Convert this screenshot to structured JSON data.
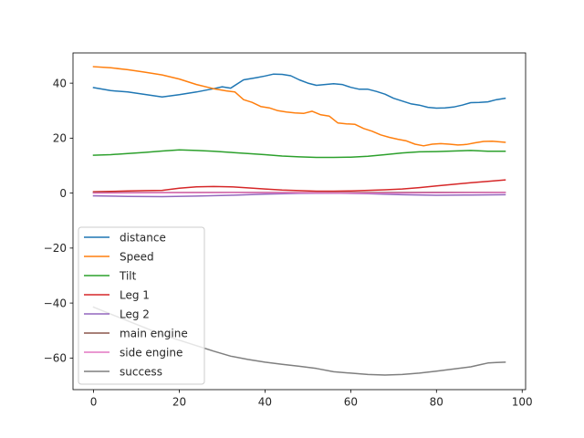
{
  "chart_data": {
    "type": "line",
    "xlim": [
      -4.8,
      100.8
    ],
    "ylim": [
      -71.5,
      51.0
    ],
    "xticks": [
      0,
      20,
      40,
      60,
      80,
      100
    ],
    "yticks": [
      -60,
      -40,
      -20,
      0,
      20,
      40
    ],
    "xtick_labels": [
      "0",
      "20",
      "40",
      "60",
      "80",
      "100"
    ],
    "ytick_labels": [
      "−60",
      "−40",
      "−20",
      "0",
      "20",
      "40"
    ],
    "grid": false,
    "legend_position": "lower-left",
    "series": [
      {
        "name": "distance",
        "color": "#1f77b4",
        "points": [
          [
            0,
            38.4
          ],
          [
            4,
            37.3
          ],
          [
            8,
            36.8
          ],
          [
            12,
            35.9
          ],
          [
            16,
            35.0
          ],
          [
            20,
            35.8
          ],
          [
            24,
            36.8
          ],
          [
            28,
            38.0
          ],
          [
            30,
            38.7
          ],
          [
            32,
            38.2
          ],
          [
            35,
            41.2
          ],
          [
            38,
            42.0
          ],
          [
            40,
            42.6
          ],
          [
            42,
            43.3
          ],
          [
            44,
            43.2
          ],
          [
            46,
            42.7
          ],
          [
            48,
            41.2
          ],
          [
            50,
            40.0
          ],
          [
            52,
            39.2
          ],
          [
            54,
            39.5
          ],
          [
            56,
            39.8
          ],
          [
            58,
            39.5
          ],
          [
            60,
            38.5
          ],
          [
            62,
            37.8
          ],
          [
            64,
            37.8
          ],
          [
            66,
            37.0
          ],
          [
            68,
            36.0
          ],
          [
            70,
            34.5
          ],
          [
            72,
            33.5
          ],
          [
            74,
            32.5
          ],
          [
            76,
            32.0
          ],
          [
            78,
            31.2
          ],
          [
            80,
            30.9
          ],
          [
            82,
            31.0
          ],
          [
            84,
            31.3
          ],
          [
            86,
            32.0
          ],
          [
            88,
            32.9
          ],
          [
            90,
            33.0
          ],
          [
            92,
            33.2
          ],
          [
            94,
            34.0
          ],
          [
            96,
            34.5
          ]
        ]
      },
      {
        "name": "Speed",
        "color": "#ff7f0e",
        "points": [
          [
            0,
            46.0
          ],
          [
            4,
            45.6
          ],
          [
            8,
            44.9
          ],
          [
            12,
            44.0
          ],
          [
            16,
            43.0
          ],
          [
            20,
            41.5
          ],
          [
            24,
            39.5
          ],
          [
            28,
            38.0
          ],
          [
            31,
            37.2
          ],
          [
            33,
            36.8
          ],
          [
            35,
            34.0
          ],
          [
            37,
            33.0
          ],
          [
            39,
            31.5
          ],
          [
            41,
            31.0
          ],
          [
            43,
            30.0
          ],
          [
            45,
            29.5
          ],
          [
            47,
            29.2
          ],
          [
            49,
            29.0
          ],
          [
            51,
            29.8
          ],
          [
            53,
            28.5
          ],
          [
            55,
            28.0
          ],
          [
            57,
            25.5
          ],
          [
            59,
            25.2
          ],
          [
            61,
            25.0
          ],
          [
            63,
            23.5
          ],
          [
            65,
            22.5
          ],
          [
            67,
            21.2
          ],
          [
            69,
            20.3
          ],
          [
            71,
            19.6
          ],
          [
            73,
            19.0
          ],
          [
            75,
            17.8
          ],
          [
            77,
            17.2
          ],
          [
            79,
            17.8
          ],
          [
            81,
            18.0
          ],
          [
            83,
            17.8
          ],
          [
            85,
            17.5
          ],
          [
            87,
            17.7
          ],
          [
            89,
            18.3
          ],
          [
            91,
            18.8
          ],
          [
            93,
            18.9
          ],
          [
            96,
            18.5
          ]
        ]
      },
      {
        "name": "Tilt",
        "color": "#2ca02c",
        "points": [
          [
            0,
            13.8
          ],
          [
            4,
            14.0
          ],
          [
            8,
            14.4
          ],
          [
            12,
            14.8
          ],
          [
            16,
            15.3
          ],
          [
            20,
            15.7
          ],
          [
            24,
            15.5
          ],
          [
            28,
            15.2
          ],
          [
            32,
            14.8
          ],
          [
            36,
            14.4
          ],
          [
            40,
            14.0
          ],
          [
            44,
            13.5
          ],
          [
            48,
            13.2
          ],
          [
            52,
            13.0
          ],
          [
            56,
            13.0
          ],
          [
            60,
            13.1
          ],
          [
            64,
            13.4
          ],
          [
            68,
            14.0
          ],
          [
            72,
            14.6
          ],
          [
            76,
            15.0
          ],
          [
            80,
            15.1
          ],
          [
            84,
            15.3
          ],
          [
            88,
            15.5
          ],
          [
            92,
            15.2
          ],
          [
            96,
            15.2
          ]
        ]
      },
      {
        "name": "Leg 1",
        "color": "#d62728",
        "points": [
          [
            0,
            0.5
          ],
          [
            4,
            0.6
          ],
          [
            8,
            0.8
          ],
          [
            12,
            0.9
          ],
          [
            16,
            1.0
          ],
          [
            20,
            1.8
          ],
          [
            24,
            2.3
          ],
          [
            28,
            2.4
          ],
          [
            32,
            2.3
          ],
          [
            36,
            1.9
          ],
          [
            40,
            1.5
          ],
          [
            44,
            1.1
          ],
          [
            48,
            0.9
          ],
          [
            52,
            0.7
          ],
          [
            56,
            0.7
          ],
          [
            60,
            0.8
          ],
          [
            64,
            1.0
          ],
          [
            68,
            1.2
          ],
          [
            72,
            1.5
          ],
          [
            76,
            2.0
          ],
          [
            80,
            2.6
          ],
          [
            84,
            3.2
          ],
          [
            88,
            3.8
          ],
          [
            92,
            4.3
          ],
          [
            96,
            4.8
          ]
        ]
      },
      {
        "name": "Leg 2",
        "color": "#9467bd",
        "points": [
          [
            0,
            -1.0
          ],
          [
            8,
            -1.2
          ],
          [
            16,
            -1.3
          ],
          [
            24,
            -1.1
          ],
          [
            32,
            -0.8
          ],
          [
            40,
            -0.4
          ],
          [
            48,
            -0.1
          ],
          [
            56,
            0.0
          ],
          [
            64,
            -0.2
          ],
          [
            72,
            -0.6
          ],
          [
            80,
            -0.8
          ],
          [
            88,
            -0.7
          ],
          [
            96,
            -0.6
          ]
        ]
      },
      {
        "name": "main engine",
        "color": "#8c564b",
        "points": [
          [
            0,
            0.2
          ],
          [
            16,
            0.2
          ],
          [
            32,
            0.3
          ],
          [
            48,
            0.2
          ],
          [
            64,
            0.2
          ],
          [
            80,
            0.3
          ],
          [
            96,
            0.3
          ]
        ]
      },
      {
        "name": "side engine",
        "color": "#e377c2",
        "points": [
          [
            0,
            0.0
          ],
          [
            16,
            0.1
          ],
          [
            32,
            0.2
          ],
          [
            48,
            0.1
          ],
          [
            64,
            0.0
          ],
          [
            80,
            0.1
          ],
          [
            96,
            0.2
          ]
        ]
      },
      {
        "name": "success",
        "color": "#7f7f7f",
        "points": [
          [
            0,
            -41.5
          ],
          [
            4,
            -44.0
          ],
          [
            8,
            -46.5
          ],
          [
            12,
            -49.0
          ],
          [
            16,
            -51.5
          ],
          [
            20,
            -53.5
          ],
          [
            24,
            -55.5
          ],
          [
            28,
            -57.5
          ],
          [
            32,
            -59.3
          ],
          [
            36,
            -60.5
          ],
          [
            40,
            -61.5
          ],
          [
            44,
            -62.3
          ],
          [
            48,
            -63.0
          ],
          [
            52,
            -63.8
          ],
          [
            56,
            -65.0
          ],
          [
            60,
            -65.5
          ],
          [
            64,
            -66.0
          ],
          [
            68,
            -66.2
          ],
          [
            72,
            -66.0
          ],
          [
            76,
            -65.5
          ],
          [
            80,
            -64.8
          ],
          [
            84,
            -64.0
          ],
          [
            88,
            -63.2
          ],
          [
            90,
            -62.5
          ],
          [
            92,
            -61.8
          ],
          [
            94,
            -61.6
          ],
          [
            96,
            -61.5
          ]
        ]
      }
    ]
  }
}
